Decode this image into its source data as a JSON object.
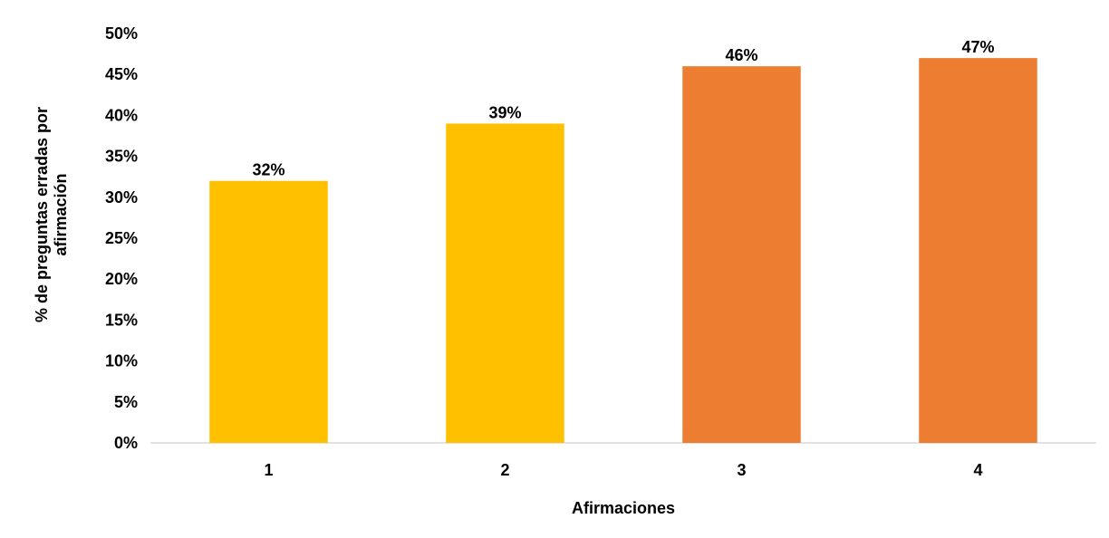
{
  "chart_data": {
    "type": "bar",
    "title": "",
    "xlabel": "Afirmaciones",
    "ylabel": "% de preguntas erradas por afirmación",
    "ylabel_lines": [
      "% de preguntas erradas por",
      "afirmación"
    ],
    "categories": [
      "1",
      "2",
      "3",
      "4"
    ],
    "values": [
      32,
      39,
      46,
      47
    ],
    "data_labels": [
      "32%",
      "39%",
      "46%",
      "47%"
    ],
    "bar_colors": [
      "#FFC000",
      "#FFC000",
      "#ED7D31",
      "#ED7D31"
    ],
    "ylim": [
      0,
      50
    ],
    "y_ticks": [
      0,
      5,
      10,
      15,
      20,
      25,
      30,
      35,
      40,
      45,
      50
    ],
    "y_tick_labels": [
      "0%",
      "5%",
      "10%",
      "15%",
      "20%",
      "25%",
      "30%",
      "35%",
      "40%",
      "45%",
      "50%"
    ],
    "grid": false,
    "legend": "none"
  }
}
